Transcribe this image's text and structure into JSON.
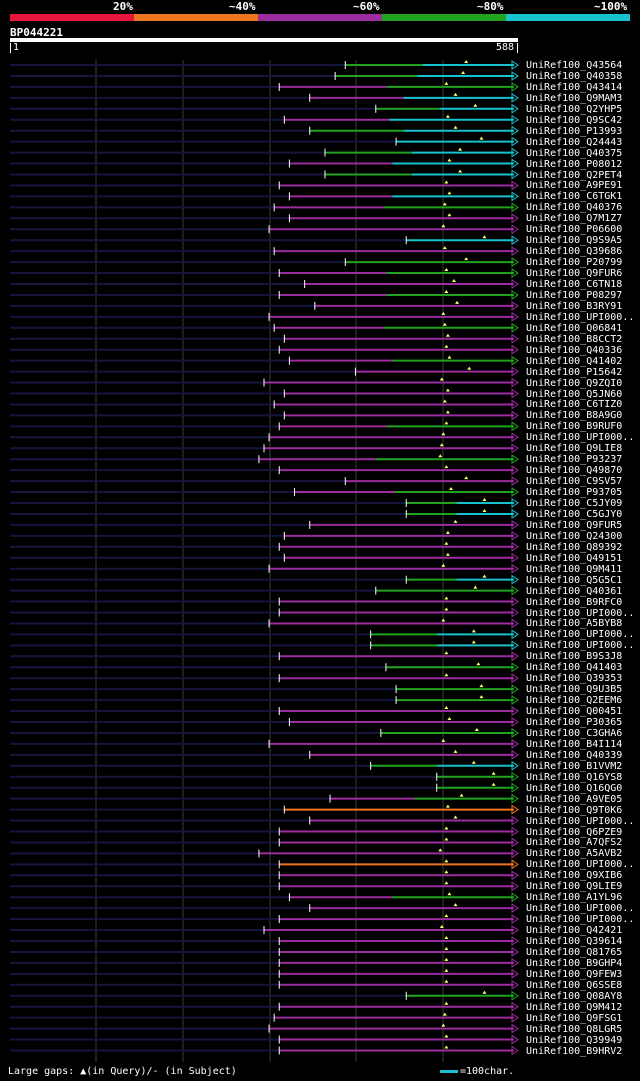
{
  "colors": {
    "20": "#e8163c",
    "40": "#ef7620",
    "60": "#9b2d9e",
    "80": "#21a31f",
    "100": "#17c2cc",
    "grid": "#3a3a3a",
    "unaligned": "#15153f",
    "gap": "#ffff66"
  },
  "scale_labels": [
    "20%",
    "~40%",
    "~60%",
    "~80%",
    "~100%"
  ],
  "query": {
    "name": "BP044221",
    "start": "1",
    "end": "588"
  },
  "legend": {
    "text": "Large gaps: ▲(in Query)/- (in Subject)",
    "key": "=100char."
  },
  "hits": [
    {
      "name": "UniRef100_Q43564",
      "c": "80",
      "s": 0.66,
      "tail": "100"
    },
    {
      "name": "UniRef100_Q40358",
      "c": "80",
      "s": 0.64,
      "tail": "100"
    },
    {
      "name": "UniRef100_Q43414",
      "c": "60",
      "s": 0.53,
      "tail": "80"
    },
    {
      "name": "UniRef100_Q9MAM3",
      "c": "60",
      "s": 0.59,
      "tail": "100"
    },
    {
      "name": "UniRef100_Q2YHP5",
      "c": "80",
      "s": 0.72,
      "tail": "100"
    },
    {
      "name": "UniRef100_Q9SC42",
      "c": "60",
      "s": 0.54,
      "tail": "100"
    },
    {
      "name": "UniRef100_P13993",
      "c": "80",
      "s": 0.59,
      "tail": "100"
    },
    {
      "name": "UniRef100_Q24443",
      "c": "100",
      "s": 0.76
    },
    {
      "name": "UniRef100_Q40375",
      "c": "80",
      "s": 0.62,
      "tail": "100"
    },
    {
      "name": "UniRef100_P08012",
      "c": "60",
      "s": 0.55,
      "tail": "100"
    },
    {
      "name": "UniRef100_Q2PET4",
      "c": "80",
      "s": 0.62,
      "tail": "100"
    },
    {
      "name": "UniRef100_A9PE91",
      "c": "60",
      "s": 0.53
    },
    {
      "name": "UniRef100_C6TGK1",
      "c": "60",
      "s": 0.55,
      "tail": "100"
    },
    {
      "name": "UniRef100_Q40376",
      "c": "60",
      "s": 0.52,
      "tail": "80"
    },
    {
      "name": "UniRef100_Q7M1Z7",
      "c": "60",
      "s": 0.55
    },
    {
      "name": "UniRef100_P06600",
      "c": "60",
      "s": 0.51
    },
    {
      "name": "UniRef100_Q9S9A5",
      "c": "100",
      "s": 0.78
    },
    {
      "name": "UniRef100_Q39686",
      "c": "60",
      "s": 0.52
    },
    {
      "name": "UniRef100_P20799",
      "c": "80",
      "s": 0.66
    },
    {
      "name": "UniRef100_Q9FUR6",
      "c": "60",
      "s": 0.53,
      "tail": "80"
    },
    {
      "name": "UniRef100_C6TN18",
      "c": "60",
      "s": 0.58
    },
    {
      "name": "UniRef100_P08297",
      "c": "60",
      "s": 0.53,
      "tail": "80"
    },
    {
      "name": "UniRef100_B3RY91",
      "c": "60",
      "s": 0.6
    },
    {
      "name": "UniRef100_UPI000..",
      "c": "60",
      "s": 0.51
    },
    {
      "name": "UniRef100_Q06841",
      "c": "60",
      "s": 0.52,
      "tail": "80"
    },
    {
      "name": "UniRef100_B8CCT2",
      "c": "60",
      "s": 0.54
    },
    {
      "name": "UniRef100_Q40336",
      "c": "60",
      "s": 0.53
    },
    {
      "name": "UniRef100_Q41402",
      "c": "60",
      "s": 0.55,
      "tail": "80"
    },
    {
      "name": "UniRef100_P15642",
      "c": "60",
      "s": 0.68
    },
    {
      "name": "UniRef100_Q9ZQI0",
      "c": "60",
      "s": 0.5
    },
    {
      "name": "UniRef100_Q5JN60",
      "c": "60",
      "s": 0.54
    },
    {
      "name": "UniRef100_C6TIZ0",
      "c": "60",
      "s": 0.52
    },
    {
      "name": "UniRef100_B8A9G0",
      "c": "60",
      "s": 0.54
    },
    {
      "name": "UniRef100_B9RUF0",
      "c": "60",
      "s": 0.53,
      "tail": "80"
    },
    {
      "name": "UniRef100_UPI000..",
      "c": "60",
      "s": 0.51
    },
    {
      "name": "UniRef100_Q9LIE8",
      "c": "60",
      "s": 0.5
    },
    {
      "name": "UniRef100_P93237",
      "c": "60",
      "s": 0.49,
      "tail": "80"
    },
    {
      "name": "UniRef100_Q49870",
      "c": "60",
      "s": 0.53
    },
    {
      "name": "UniRef100_C9SV57",
      "c": "60",
      "s": 0.66
    },
    {
      "name": "UniRef100_P93705",
      "c": "60",
      "s": 0.56,
      "tail": "80"
    },
    {
      "name": "UniRef100_C5JY09",
      "c": "80",
      "s": 0.78,
      "tail": "100"
    },
    {
      "name": "UniRef100_C5GJY0",
      "c": "80",
      "s": 0.78,
      "tail": "100"
    },
    {
      "name": "UniRef100_Q9FUR5",
      "c": "60",
      "s": 0.59
    },
    {
      "name": "UniRef100_Q24300",
      "c": "60",
      "s": 0.54
    },
    {
      "name": "UniRef100_Q89392",
      "c": "60",
      "s": 0.53
    },
    {
      "name": "UniRef100_Q49151",
      "c": "60",
      "s": 0.54
    },
    {
      "name": "UniRef100_Q9M411",
      "c": "60",
      "s": 0.51
    },
    {
      "name": "UniRef100_Q5G5C1",
      "c": "80",
      "s": 0.78,
      "tail": "100"
    },
    {
      "name": "UniRef100_Q40361",
      "c": "80",
      "s": 0.72
    },
    {
      "name": "UniRef100_B9RFC0",
      "c": "60",
      "s": 0.53
    },
    {
      "name": "UniRef100_UPI000..",
      "c": "60",
      "s": 0.53
    },
    {
      "name": "UniRef100_A5BYB8",
      "c": "60",
      "s": 0.51
    },
    {
      "name": "UniRef100_UPI000..",
      "c": "80",
      "s": 0.71,
      "tail": "100"
    },
    {
      "name": "UniRef100_UPI000..",
      "c": "80",
      "s": 0.71,
      "tail": "100"
    },
    {
      "name": "UniRef100_B9S3J8",
      "c": "60",
      "s": 0.53
    },
    {
      "name": "UniRef100_Q41403",
      "c": "80",
      "s": 0.74
    },
    {
      "name": "UniRef100_Q39353",
      "c": "60",
      "s": 0.53
    },
    {
      "name": "UniRef100_Q9U3B5",
      "c": "80",
      "s": 0.76
    },
    {
      "name": "UniRef100_Q2EEM6",
      "c": "80",
      "s": 0.76
    },
    {
      "name": "UniRef100_Q00451",
      "c": "60",
      "s": 0.53
    },
    {
      "name": "UniRef100_P30365",
      "c": "60",
      "s": 0.55
    },
    {
      "name": "UniRef100_C3GHA6",
      "c": "80",
      "s": 0.73
    },
    {
      "name": "UniRef100_B4I114",
      "c": "60",
      "s": 0.51
    },
    {
      "name": "UniRef100_Q40339",
      "c": "60",
      "s": 0.59
    },
    {
      "name": "UniRef100_B1VVM2",
      "c": "80",
      "s": 0.71,
      "tail": "100"
    },
    {
      "name": "UniRef100_Q16YS8",
      "c": "80",
      "s": 0.84
    },
    {
      "name": "UniRef100_Q16QG0",
      "c": "80",
      "s": 0.84
    },
    {
      "name": "UniRef100_A9VE05",
      "c": "60",
      "s": 0.63,
      "tail": "80"
    },
    {
      "name": "UniRef100_Q9T0K6",
      "c": "40",
      "s": 0.54
    },
    {
      "name": "UniRef100_UPI000..",
      "c": "60",
      "s": 0.59
    },
    {
      "name": "UniRef100_Q6PZE9",
      "c": "60",
      "s": 0.53
    },
    {
      "name": "UniRef100_A7QFS2",
      "c": "60",
      "s": 0.53
    },
    {
      "name": "UniRef100_A5AVB2",
      "c": "60",
      "s": 0.49
    },
    {
      "name": "UniRef100_UPI000..",
      "c": "40",
      "s": 0.53
    },
    {
      "name": "UniRef100_Q9XIB6",
      "c": "60",
      "s": 0.53
    },
    {
      "name": "UniRef100_Q9LIE9",
      "c": "60",
      "s": 0.53
    },
    {
      "name": "UniRef100_A1YL96",
      "c": "60",
      "s": 0.55,
      "tail": "80"
    },
    {
      "name": "UniRef100_UPI000..",
      "c": "60",
      "s": 0.59
    },
    {
      "name": "UniRef100_UPI000..",
      "c": "60",
      "s": 0.53
    },
    {
      "name": "UniRef100_Q42421",
      "c": "60",
      "s": 0.5
    },
    {
      "name": "UniRef100_Q39614",
      "c": "60",
      "s": 0.53
    },
    {
      "name": "UniRef100_Q81765",
      "c": "60",
      "s": 0.53
    },
    {
      "name": "UniRef100_B9GHP4",
      "c": "60",
      "s": 0.53
    },
    {
      "name": "UniRef100_Q9FEW3",
      "c": "60",
      "s": 0.53
    },
    {
      "name": "UniRef100_Q6SSE8",
      "c": "60",
      "s": 0.53
    },
    {
      "name": "UniRef100_Q08AY8",
      "c": "80",
      "s": 0.78
    },
    {
      "name": "UniRef100_Q9M412",
      "c": "60",
      "s": 0.53
    },
    {
      "name": "UniRef100_Q9FSG1",
      "c": "60",
      "s": 0.52
    },
    {
      "name": "UniRef100_Q8LGR5",
      "c": "60",
      "s": 0.51
    },
    {
      "name": "UniRef100_Q39949",
      "c": "60",
      "s": 0.53
    },
    {
      "name": "UniRef100_B9HRV2",
      "c": "60",
      "s": 0.53
    }
  ]
}
